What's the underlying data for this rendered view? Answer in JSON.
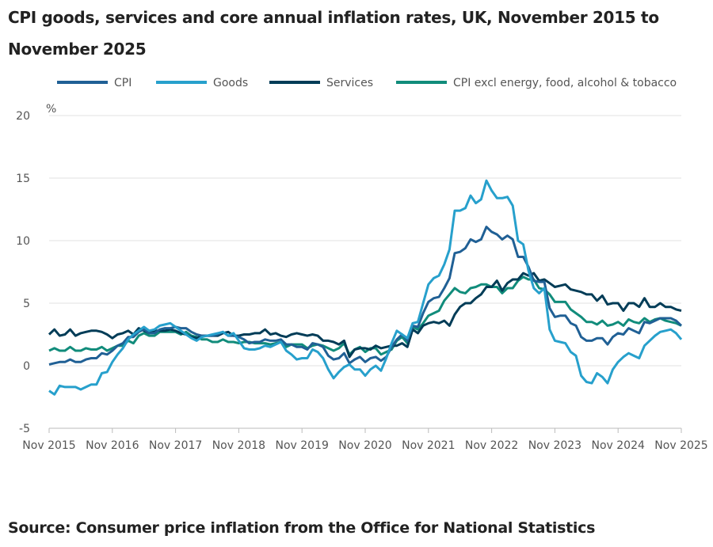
{
  "chart_data": {
    "type": "line",
    "title": "CPI goods, services and core annual inflation rates, UK, November 2015 to November 2025",
    "ylabel": "%",
    "ylim": [
      -5,
      20
    ],
    "yticks": [
      "-5",
      "0",
      "5",
      "10",
      "15",
      "20"
    ],
    "xticks": [
      "Nov 2015",
      "Nov 2016",
      "Nov 2017",
      "Nov 2018",
      "Nov 2019",
      "Nov 2020",
      "Nov 2021",
      "Nov 2022",
      "Nov 2023",
      "Nov 2024",
      "Nov 2025"
    ],
    "x_start": "Nov 2015",
    "x_end": "Nov 2025",
    "frequency": "monthly",
    "grid": true,
    "legend": "top",
    "series": [
      {
        "name": "CPI",
        "color": "#206095",
        "values": [
          0.1,
          0.2,
          0.3,
          0.3,
          0.5,
          0.3,
          0.3,
          0.5,
          0.6,
          0.6,
          1.0,
          0.9,
          1.2,
          1.6,
          1.8,
          2.3,
          2.3,
          2.7,
          2.9,
          2.6,
          2.6,
          2.9,
          3.0,
          3.0,
          3.1,
          3.0,
          3.0,
          2.7,
          2.5,
          2.4,
          2.4,
          2.4,
          2.5,
          2.7,
          2.4,
          2.4,
          2.3,
          2.1,
          1.8,
          1.9,
          1.9,
          2.1,
          2.0,
          2.0,
          2.1,
          1.7,
          1.7,
          1.5,
          1.5,
          1.3,
          1.8,
          1.7,
          1.5,
          0.8,
          0.5,
          0.6,
          1.0,
          0.2,
          0.5,
          0.7,
          0.3,
          0.6,
          0.7,
          0.4,
          0.7,
          1.5,
          2.1,
          2.5,
          2.0,
          3.2,
          3.1,
          4.2,
          5.1,
          5.4,
          5.5,
          6.2,
          7.0,
          9.0,
          9.1,
          9.4,
          10.1,
          9.9,
          10.1,
          11.1,
          10.7,
          10.5,
          10.1,
          10.4,
          10.1,
          8.7,
          8.7,
          7.9,
          6.8,
          6.7,
          6.7,
          4.6,
          3.9,
          4.0,
          4.0,
          3.4,
          3.2,
          2.3,
          2.0,
          2.0,
          2.2,
          2.2,
          1.7,
          2.3,
          2.6,
          2.5,
          3.0,
          2.8,
          2.6,
          3.5,
          3.4,
          3.6,
          3.8,
          3.8,
          3.8,
          3.6,
          3.2
        ]
      },
      {
        "name": "Goods",
        "color": "#27a0cc",
        "values": [
          -2.0,
          -2.3,
          -1.6,
          -1.7,
          -1.7,
          -1.7,
          -1.9,
          -1.7,
          -1.5,
          -1.5,
          -0.6,
          -0.5,
          0.3,
          0.9,
          1.4,
          2.1,
          2.5,
          2.8,
          3.1,
          2.8,
          2.9,
          3.2,
          3.3,
          3.4,
          3.1,
          2.8,
          2.5,
          2.2,
          2.0,
          2.3,
          2.4,
          2.5,
          2.6,
          2.7,
          2.4,
          2.6,
          2.0,
          1.4,
          1.3,
          1.3,
          1.4,
          1.6,
          1.5,
          1.7,
          1.9,
          1.2,
          0.9,
          0.5,
          0.6,
          0.6,
          1.3,
          1.1,
          0.6,
          -0.3,
          -1.0,
          -0.5,
          -0.1,
          0.1,
          -0.3,
          -0.3,
          -0.8,
          -0.3,
          0.0,
          -0.4,
          0.6,
          1.8,
          2.8,
          2.5,
          2.2,
          3.4,
          3.5,
          5.0,
          6.5,
          7.0,
          7.2,
          8.1,
          9.3,
          12.4,
          12.4,
          12.6,
          13.6,
          13.0,
          13.3,
          14.8,
          14.0,
          13.4,
          13.4,
          13.5,
          12.8,
          10.0,
          9.7,
          7.6,
          6.2,
          5.8,
          6.2,
          2.9,
          2.0,
          1.9,
          1.8,
          1.1,
          0.8,
          -0.8,
          -1.3,
          -1.4,
          -0.6,
          -0.9,
          -1.4,
          -0.3,
          0.3,
          0.7,
          1.0,
          0.8,
          0.6,
          1.6,
          2.0,
          2.4,
          2.7,
          2.8,
          2.9,
          2.6,
          2.1
        ]
      },
      {
        "name": "Services",
        "color": "#003c57",
        "values": [
          2.5,
          2.9,
          2.4,
          2.5,
          2.9,
          2.4,
          2.6,
          2.7,
          2.8,
          2.8,
          2.7,
          2.5,
          2.2,
          2.5,
          2.6,
          2.8,
          2.5,
          3.0,
          2.8,
          2.6,
          2.8,
          2.8,
          2.8,
          2.9,
          2.8,
          2.6,
          2.5,
          2.3,
          2.2,
          2.4,
          2.4,
          2.4,
          2.4,
          2.6,
          2.7,
          2.4,
          2.4,
          2.5,
          2.5,
          2.6,
          2.6,
          2.9,
          2.5,
          2.6,
          2.4,
          2.3,
          2.5,
          2.6,
          2.5,
          2.4,
          2.5,
          2.4,
          2.0,
          2.0,
          1.9,
          1.7,
          2.0,
          0.7,
          1.3,
          1.4,
          1.4,
          1.3,
          1.6,
          1.4,
          1.5,
          1.6,
          1.6,
          1.8,
          1.5,
          2.9,
          2.6,
          3.2,
          3.4,
          3.5,
          3.4,
          3.6,
          3.2,
          4.1,
          4.7,
          5.0,
          5.0,
          5.4,
          5.7,
          6.3,
          6.3,
          6.8,
          6.0,
          6.6,
          6.9,
          6.9,
          7.4,
          7.2,
          7.4,
          6.8,
          6.9,
          6.6,
          6.3,
          6.4,
          6.5,
          6.1,
          6.0,
          5.9,
          5.7,
          5.7,
          5.2,
          5.6,
          4.9,
          5.0,
          5.0,
          4.4,
          5.0,
          5.0,
          4.7,
          5.4,
          4.7,
          4.7,
          5.0,
          4.7,
          4.7,
          4.5,
          4.4
        ]
      },
      {
        "name": "CPI excl energy, food, alcohol & tobacco",
        "color": "#118c7b",
        "values": [
          1.2,
          1.4,
          1.2,
          1.2,
          1.5,
          1.2,
          1.2,
          1.4,
          1.3,
          1.3,
          1.5,
          1.2,
          1.4,
          1.6,
          1.6,
          2.0,
          1.8,
          2.4,
          2.6,
          2.4,
          2.4,
          2.7,
          2.7,
          2.7,
          2.7,
          2.5,
          2.7,
          2.4,
          2.3,
          2.1,
          2.1,
          1.9,
          1.9,
          2.1,
          1.9,
          1.9,
          1.8,
          1.9,
          1.9,
          1.8,
          1.8,
          1.8,
          1.7,
          1.8,
          1.9,
          1.5,
          1.7,
          1.7,
          1.7,
          1.4,
          1.6,
          1.7,
          1.6,
          1.4,
          1.2,
          1.4,
          1.8,
          0.9,
          1.3,
          1.5,
          1.1,
          1.4,
          1.4,
          0.9,
          1.1,
          1.3,
          2.0,
          2.3,
          1.8,
          3.1,
          2.9,
          3.4,
          4.0,
          4.2,
          4.4,
          5.2,
          5.7,
          6.2,
          5.9,
          5.8,
          6.2,
          6.3,
          6.5,
          6.5,
          6.3,
          6.3,
          5.8,
          6.2,
          6.2,
          6.8,
          7.1,
          6.9,
          6.9,
          6.2,
          6.1,
          5.7,
          5.1,
          5.1,
          5.1,
          4.5,
          4.2,
          3.9,
          3.5,
          3.5,
          3.3,
          3.6,
          3.2,
          3.3,
          3.5,
          3.2,
          3.7,
          3.5,
          3.4,
          3.8,
          3.5,
          3.7,
          3.8,
          3.6,
          3.5,
          3.4,
          3.2
        ]
      }
    ]
  },
  "source": "Source: Consumer price inflation from the Office for National Statistics"
}
